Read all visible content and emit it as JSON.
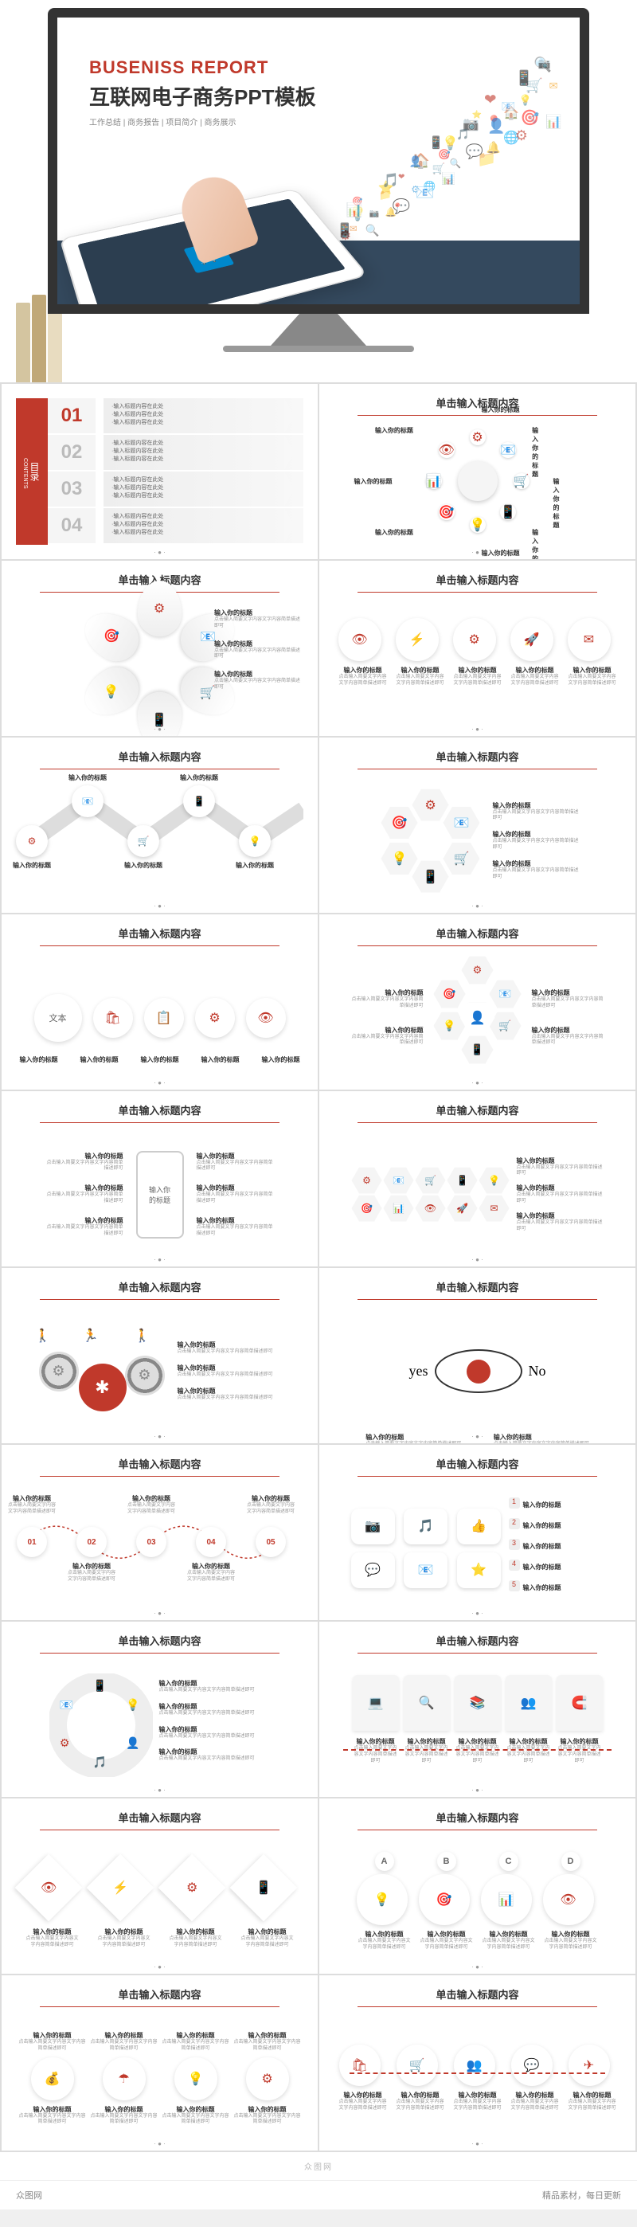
{
  "cover": {
    "title_en": "BUSENISS REPORT",
    "title_cn": "互联网电子商务PPT模板",
    "subtitle": "工作总结 | 商务报告 | 项目简介 | 商务展示",
    "colors": {
      "accent": "#c0392b",
      "navy": "#34495e",
      "blue": "#0088cc"
    }
  },
  "common": {
    "slide_title": "单击输入标题内容",
    "item_title": "输入你的标题",
    "item_desc": "点击输入简要文字内容文字内容简单描述即可",
    "pager": "· ● ·"
  },
  "toc": {
    "side_cn": "目录",
    "side_en": "CONTENTS",
    "numbers": [
      "01",
      "02",
      "03",
      "04"
    ],
    "lines": "·输入标题内容在此处\n·输入标题内容在此处\n·输入标题内容在此处"
  },
  "slide_phone": {
    "center_text": "输入你\n的标题"
  },
  "slide_text_circle": {
    "label": "文本"
  },
  "slide_letters": {
    "letters": [
      "A",
      "B",
      "C",
      "D"
    ]
  },
  "zigzag_nums": [
    "01",
    "02",
    "03",
    "04",
    "05"
  ],
  "spray_colors": [
    "#c0392b",
    "#e67e22",
    "#3498db",
    "#888",
    "#c0392b",
    "#f39c12"
  ],
  "watermark": "众图网",
  "footer": {
    "left": "众图网",
    "right": "精品素材，每日更新"
  }
}
